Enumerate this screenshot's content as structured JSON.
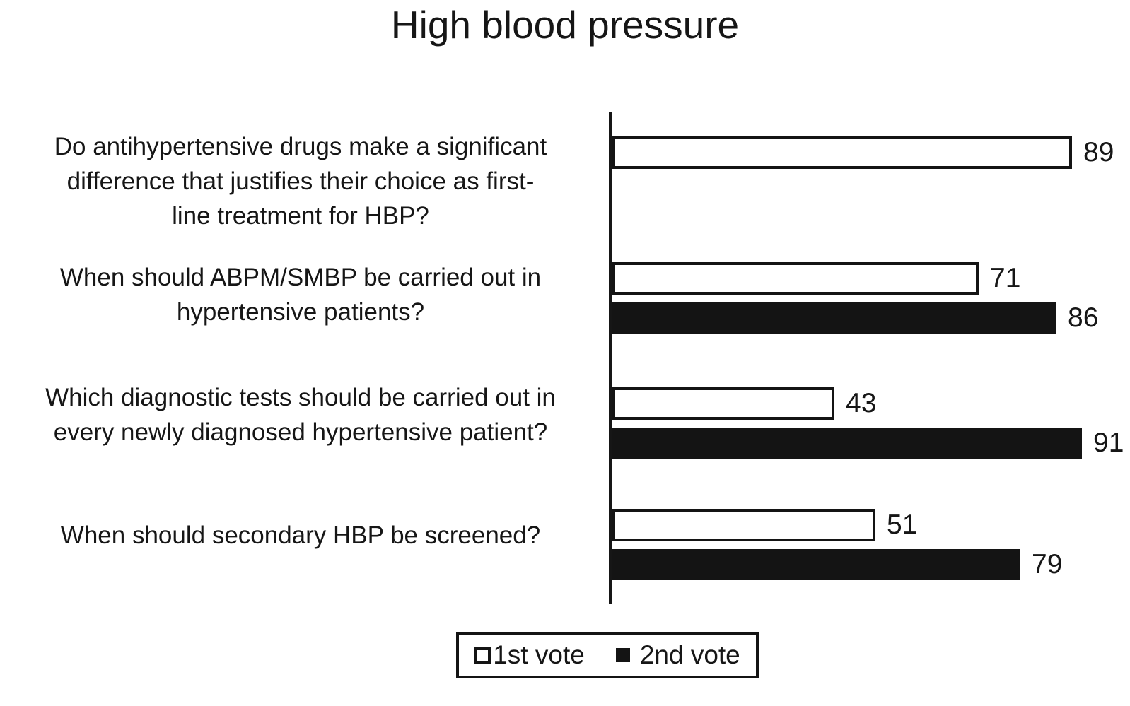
{
  "chart_data": {
    "type": "bar",
    "orientation": "horizontal",
    "title": "High blood pressure",
    "categories": [
      [
        "Do antihypertensive drugs make a significant",
        "difference that justifies their choice as first-",
        "line treatment for HBP?"
      ],
      [
        "When should ABPM/SMBP be carried out in",
        "hypertensive patients?"
      ],
      [
        "Which diagnostic tests should be carried out in",
        "every newly diagnosed hypertensive patient?"
      ],
      [
        "When should secondary HBP be screened?"
      ]
    ],
    "series": [
      {
        "name": "1st vote",
        "fill": "#ffffff",
        "outline": "#141414",
        "values": [
          89,
          71,
          43,
          51
        ]
      },
      {
        "name": "2nd vote",
        "fill": "#141414",
        "outline": "#141414",
        "values": [
          null,
          86,
          91,
          79
        ]
      }
    ],
    "xlim": [
      0,
      100
    ],
    "value_labels": true,
    "grid": false,
    "legend_position": "bottom",
    "axis": {
      "x_axis_visible": false,
      "y_axis_visible": true
    }
  },
  "legend": {
    "items": [
      {
        "label": "1st vote",
        "swatch": "outline"
      },
      {
        "label": "2nd vote",
        "swatch": "filled"
      }
    ]
  },
  "colors": {
    "background": "#ffffff",
    "bar_filled": "#141414",
    "bar_outline": "#141414",
    "text": "#161616"
  }
}
